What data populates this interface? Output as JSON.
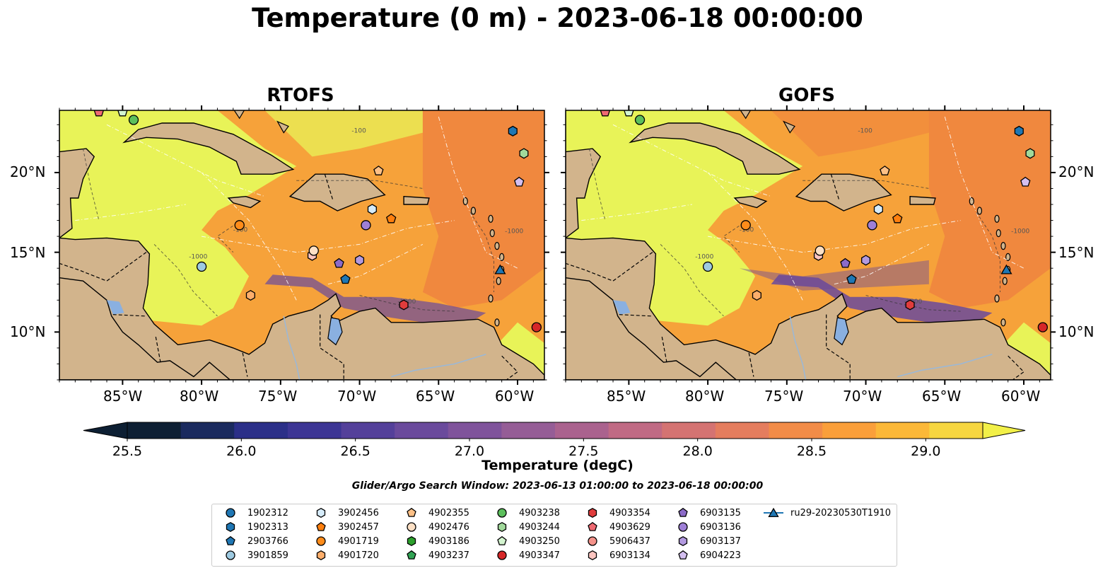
{
  "title": "Temperature (0 m) - 2023-06-18 00:00:00",
  "panels": [
    {
      "title": "RTOFS"
    },
    {
      "title": "GOFS"
    }
  ],
  "axes": {
    "x_ticks": [
      "85°W",
      "80°W",
      "75°W",
      "70°W",
      "65°W",
      "60°W"
    ],
    "y_ticks": [
      "20°N",
      "15°N",
      "10°N"
    ]
  },
  "colorbar": {
    "label": "Temperature (degC)",
    "ticks": [
      "25.5",
      "26.0",
      "26.5",
      "27.0",
      "27.5",
      "28.0",
      "28.5",
      "29.0"
    ],
    "min": 25.5,
    "max": 29.25,
    "step": 0.25,
    "colors": [
      "#0d1f33",
      "#1a2a5e",
      "#2b2f88",
      "#3c3594",
      "#54409a",
      "#6a4a9c",
      "#7f539b",
      "#955d96",
      "#aa628e",
      "#c06a84",
      "#d47372",
      "#e47d5e",
      "#f28c48",
      "#fa9f3a",
      "#fbb838",
      "#f6d640"
    ],
    "extend_low_color": "#0d1f33",
    "extend_high_color": "#f2f048"
  },
  "contour_labels": [
    "-100",
    "-1000"
  ],
  "search_window": "Glider/Argo Search Window: 2023-06-13 01:00:00 to 2023-06-18 00:00:00",
  "legend": [
    {
      "label": "1902312",
      "marker": "circle",
      "color": "#1f77b4"
    },
    {
      "label": "1902313",
      "marker": "hexagon",
      "color": "#1f77b4"
    },
    {
      "label": "2903766",
      "marker": "pentagon",
      "color": "#1f77b4"
    },
    {
      "label": "3901859",
      "marker": "circle",
      "color": "#9ecae1"
    },
    {
      "label": "3902456",
      "marker": "hexagon",
      "color": "#d6ecfa"
    },
    {
      "label": "3902457",
      "marker": "pentagon",
      "color": "#ff7f0e"
    },
    {
      "label": "4901719",
      "marker": "circle",
      "color": "#ff8c1a"
    },
    {
      "label": "4901720",
      "marker": "hexagon",
      "color": "#fdae6b"
    },
    {
      "label": "4902355",
      "marker": "pentagon",
      "color": "#fdc086"
    },
    {
      "label": "4902476",
      "marker": "circle",
      "color": "#fde0c5"
    },
    {
      "label": "4903186",
      "marker": "hexagon",
      "color": "#2ca02c"
    },
    {
      "label": "4903237",
      "marker": "pentagon",
      "color": "#31a354"
    },
    {
      "label": "4903238",
      "marker": "circle",
      "color": "#5cbf5c"
    },
    {
      "label": "4903244",
      "marker": "hexagon",
      "color": "#a1d99b"
    },
    {
      "label": "4903250",
      "marker": "pentagon",
      "color": "#d4f5d0"
    },
    {
      "label": "4903347",
      "marker": "circle",
      "color": "#d62728"
    },
    {
      "label": "4903354",
      "marker": "hexagon",
      "color": "#e03c3c"
    },
    {
      "label": "4903629",
      "marker": "pentagon",
      "color": "#ef6a72"
    },
    {
      "label": "5906437",
      "marker": "circle",
      "color": "#f4928a"
    },
    {
      "label": "6903134",
      "marker": "hexagon",
      "color": "#fcc5c0"
    },
    {
      "label": "6903135",
      "marker": "pentagon",
      "color": "#8c6bc8"
    },
    {
      "label": "6903136",
      "marker": "circle",
      "color": "#9e7fd6"
    },
    {
      "label": "6903137",
      "marker": "hexagon",
      "color": "#b39ae0"
    },
    {
      "label": "6904223",
      "marker": "pentagon",
      "color": "#d4bff0"
    },
    {
      "label": "ru29-20230530T1910",
      "marker": "triangle-line",
      "color": "#1f77b4"
    }
  ],
  "map_colors": {
    "land": "#d2b48c",
    "lake": "#8ab0e0",
    "river": "#9ab8d8",
    "sea_warm": "#e8f358",
    "sea_mid": "#f6a23a",
    "sea_hot": "#f0883e",
    "sea_cool": "#6a4a9c"
  },
  "markers": [
    {
      "id": "1902313",
      "lon": -60.3,
      "lat": 22.6
    },
    {
      "id": "4903244",
      "lon": -59.6,
      "lat": 21.2
    },
    {
      "id": "6904223",
      "lon": -59.9,
      "lat": 19.4
    },
    {
      "id": "4902355",
      "lon": -68.8,
      "lat": 20.1
    },
    {
      "id": "3902456",
      "lon": -69.2,
      "lat": 17.7
    },
    {
      "id": "3902457",
      "lon": -68.0,
      "lat": 17.1
    },
    {
      "id": "6903136",
      "lon": -69.6,
      "lat": 16.7
    },
    {
      "id": "4901719",
      "lon": -77.6,
      "lat": 16.7
    },
    {
      "id": "3901859",
      "lon": -80.0,
      "lat": 14.1
    },
    {
      "id": "6903134",
      "lon": -73.0,
      "lat": 14.8
    },
    {
      "id": "4902476",
      "lon": -72.9,
      "lat": 15.1
    },
    {
      "id": "6903135",
      "lon": -71.3,
      "lat": 14.3
    },
    {
      "id": "6903137",
      "lon": -70.0,
      "lat": 14.5
    },
    {
      "id": "2903766",
      "lon": -70.9,
      "lat": 13.3
    },
    {
      "id": "4901720",
      "lon": -76.9,
      "lat": 12.3
    },
    {
      "id": "4903354",
      "lon": -67.2,
      "lat": 11.7
    },
    {
      "id": "ru29-20230530T1910",
      "lon": -61.1,
      "lat": 13.9
    },
    {
      "id": "4903347",
      "lon": -58.8,
      "lat": 10.3
    },
    {
      "id": "4903238",
      "lon": -84.3,
      "lat": 23.3
    },
    {
      "id": "4903250",
      "lon": -85.0,
      "lat": 23.8
    },
    {
      "id": "4903629",
      "lon": -86.5,
      "lat": 23.8
    }
  ]
}
